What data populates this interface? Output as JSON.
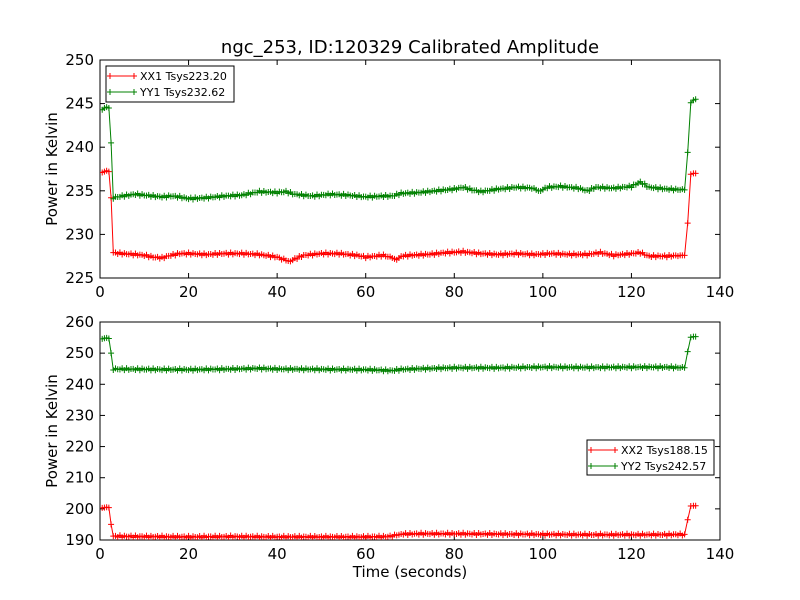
{
  "title": "ngc_253, ID:120329 Calibrated Amplitude",
  "colors": {
    "red": "#ff0000",
    "green": "#008000"
  },
  "chart_data": [
    {
      "type": "line",
      "xlabel": "",
      "ylabel": "Power in Kelvin",
      "xlim": [
        0,
        140
      ],
      "ylim": [
        225,
        250
      ],
      "xticks": [
        "0",
        "20",
        "40",
        "60",
        "80",
        "100",
        "120",
        "140"
      ],
      "yticks": [
        "225",
        "230",
        "235",
        "240",
        "245",
        "250"
      ],
      "legend_position": "upper-left",
      "series": [
        {
          "name": "XX1 Tsys223.20",
          "color": "#ff0000",
          "points": [
            [
              0.5,
              237.1
            ],
            [
              1,
              237.2
            ],
            [
              1.5,
              237.3
            ],
            [
              2,
              237.2
            ],
            [
              2.5,
              234.2
            ],
            [
              3,
              227.9
            ],
            [
              5,
              227.8
            ],
            [
              8,
              227.7
            ],
            [
              10,
              227.6
            ],
            [
              12,
              227.4
            ],
            [
              14,
              227.3
            ],
            [
              16,
              227.6
            ],
            [
              18,
              227.8
            ],
            [
              20,
              227.8
            ],
            [
              24,
              227.7
            ],
            [
              28,
              227.8
            ],
            [
              32,
              227.8
            ],
            [
              36,
              227.7
            ],
            [
              40,
              227.4
            ],
            [
              42,
              227.0
            ],
            [
              43,
              226.9
            ],
            [
              44,
              227.2
            ],
            [
              46,
              227.6
            ],
            [
              50,
              227.8
            ],
            [
              54,
              227.8
            ],
            [
              58,
              227.6
            ],
            [
              60,
              227.4
            ],
            [
              62,
              227.5
            ],
            [
              64,
              227.6
            ],
            [
              66,
              227.3
            ],
            [
              67,
              227.1
            ],
            [
              68,
              227.5
            ],
            [
              70,
              227.6
            ],
            [
              74,
              227.7
            ],
            [
              78,
              227.9
            ],
            [
              82,
              228.0
            ],
            [
              86,
              227.8
            ],
            [
              90,
              227.7
            ],
            [
              94,
              227.8
            ],
            [
              98,
              227.7
            ],
            [
              102,
              227.8
            ],
            [
              106,
              227.7
            ],
            [
              110,
              227.7
            ],
            [
              113,
              227.9
            ],
            [
              116,
              227.6
            ],
            [
              120,
              227.8
            ],
            [
              122,
              227.9
            ],
            [
              124,
              227.5
            ],
            [
              128,
              227.5
            ],
            [
              131,
              227.6
            ],
            [
              132,
              227.6
            ],
            [
              132.7,
              231.3
            ],
            [
              133.4,
              236.9
            ],
            [
              134,
              237.0
            ],
            [
              134.5,
              237.0
            ]
          ]
        },
        {
          "name": "YY1 Tsys232.62",
          "color": "#008000",
          "points": [
            [
              0.5,
              244.3
            ],
            [
              1,
              244.5
            ],
            [
              1.5,
              244.6
            ],
            [
              2,
              244.5
            ],
            [
              2.5,
              240.5
            ],
            [
              3,
              234.2
            ],
            [
              5,
              234.4
            ],
            [
              8,
              234.6
            ],
            [
              10,
              234.5
            ],
            [
              12,
              234.4
            ],
            [
              14,
              234.3
            ],
            [
              16,
              234.4
            ],
            [
              18,
              234.3
            ],
            [
              20,
              234.1
            ],
            [
              24,
              234.2
            ],
            [
              28,
              234.4
            ],
            [
              32,
              234.5
            ],
            [
              36,
              234.9
            ],
            [
              40,
              234.8
            ],
            [
              42,
              234.9
            ],
            [
              44,
              234.6
            ],
            [
              48,
              234.4
            ],
            [
              52,
              234.6
            ],
            [
              56,
              234.5
            ],
            [
              60,
              234.3
            ],
            [
              64,
              234.4
            ],
            [
              66,
              234.4
            ],
            [
              68,
              234.7
            ],
            [
              72,
              234.8
            ],
            [
              76,
              235.0
            ],
            [
              80,
              235.2
            ],
            [
              82,
              235.4
            ],
            [
              84,
              235.1
            ],
            [
              86,
              234.9
            ],
            [
              90,
              235.2
            ],
            [
              94,
              235.4
            ],
            [
              98,
              235.3
            ],
            [
              99,
              234.9
            ],
            [
              101,
              235.4
            ],
            [
              104,
              235.5
            ],
            [
              108,
              235.3
            ],
            [
              110,
              235.0
            ],
            [
              112,
              235.4
            ],
            [
              116,
              235.3
            ],
            [
              120,
              235.5
            ],
            [
              122,
              236.0
            ],
            [
              124,
              235.4
            ],
            [
              128,
              235.2
            ],
            [
              132,
              235.1
            ],
            [
              132.7,
              239.4
            ],
            [
              133.4,
              245.1
            ],
            [
              134,
              245.4
            ],
            [
              134.5,
              245.5
            ]
          ]
        }
      ]
    },
    {
      "type": "line",
      "xlabel": "Time (seconds)",
      "ylabel": "Power in Kelvin",
      "xlim": [
        0,
        140
      ],
      "ylim": [
        190,
        260
      ],
      "xticks": [
        "0",
        "20",
        "40",
        "60",
        "80",
        "100",
        "120",
        "140"
      ],
      "yticks": [
        "190",
        "200",
        "210",
        "220",
        "230",
        "240",
        "250",
        "260"
      ],
      "legend_position": "center-right",
      "series": [
        {
          "name": "XX2 Tsys188.15",
          "color": "#ff0000",
          "points": [
            [
              0.5,
              200.3
            ],
            [
              1,
              200.4
            ],
            [
              1.5,
              200.5
            ],
            [
              2,
              200.4
            ],
            [
              2.5,
              195
            ],
            [
              3,
              191.2
            ],
            [
              10,
              191.1
            ],
            [
              20,
              191.0
            ],
            [
              30,
              191.1
            ],
            [
              40,
              191.0
            ],
            [
              50,
              191.0
            ],
            [
              60,
              191.0
            ],
            [
              65,
              191.1
            ],
            [
              67,
              191.5
            ],
            [
              68,
              191.9
            ],
            [
              72,
              192.0
            ],
            [
              80,
              192.0
            ],
            [
              90,
              191.9
            ],
            [
              100,
              191.8
            ],
            [
              110,
              191.7
            ],
            [
              120,
              191.7
            ],
            [
              128,
              191.7
            ],
            [
              132,
              191.8
            ],
            [
              132.7,
              196.5
            ],
            [
              133.4,
              200.9
            ],
            [
              134,
              201.0
            ],
            [
              134.5,
              201.0
            ]
          ]
        },
        {
          "name": "YY2 Tsys242.57",
          "color": "#008000",
          "points": [
            [
              0.5,
              254.6
            ],
            [
              1,
              254.8
            ],
            [
              1.5,
              254.9
            ],
            [
              2,
              254.7
            ],
            [
              2.5,
              250
            ],
            [
              3,
              244.9
            ],
            [
              10,
              244.8
            ],
            [
              20,
              244.7
            ],
            [
              30,
              244.9
            ],
            [
              36,
              245.1
            ],
            [
              40,
              244.9
            ],
            [
              50,
              244.8
            ],
            [
              60,
              244.7
            ],
            [
              66,
              244.4
            ],
            [
              68,
              244.8
            ],
            [
              75,
              245.1
            ],
            [
              80,
              245.3
            ],
            [
              90,
              245.3
            ],
            [
              100,
              245.5
            ],
            [
              110,
              245.4
            ],
            [
              120,
              245.5
            ],
            [
              128,
              245.5
            ],
            [
              132,
              245.3
            ],
            [
              132.7,
              250.5
            ],
            [
              133.4,
              255.1
            ],
            [
              134,
              255.3
            ],
            [
              134.5,
              255.3
            ]
          ]
        }
      ]
    }
  ]
}
